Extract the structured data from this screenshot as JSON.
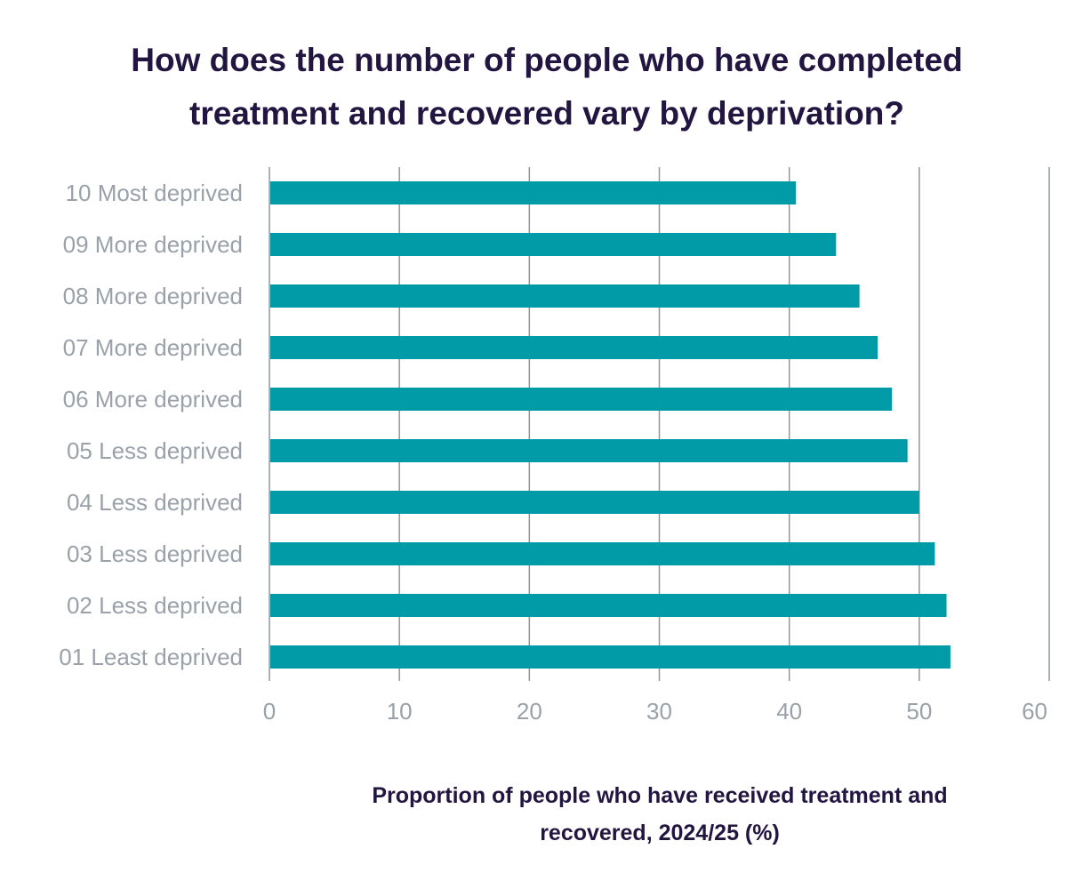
{
  "chart_data": {
    "type": "bar",
    "orientation": "horizontal",
    "title": "How does the number of people who have completed treatment and recovered vary by deprivation?",
    "xlabel": "Proportion of people who have received treatment and recovered, 2024/25 (%)",
    "ylabel": "",
    "categories": [
      "10 Most deprived",
      "09 More deprived",
      "08 More deprived",
      "07 More deprived",
      "06 More deprived",
      "05 Less deprived",
      "04 Less deprived",
      "03 Less deprived",
      "02 Less deprived",
      "01 Least deprived"
    ],
    "values": [
      40.5,
      43.6,
      45.4,
      46.8,
      47.9,
      49.1,
      50.0,
      51.2,
      52.1,
      52.4
    ],
    "xlim": [
      0,
      60
    ],
    "xticks": [
      0,
      10,
      20,
      30,
      40,
      50,
      60
    ],
    "grid": "vertical",
    "legend": "none",
    "colors": {
      "bar": "#009ba6",
      "title": "#221641",
      "tick_text": "#9aa1a9",
      "gridline": "#8f979f"
    }
  }
}
